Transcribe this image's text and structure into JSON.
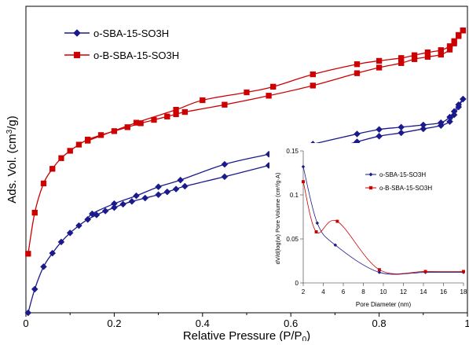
{
  "chart_data": [
    {
      "type": "scatter",
      "title": "",
      "xlabel": "Relative Pressure (P/P",
      "xlabel_sub": "0",
      "xlabel_end": ")",
      "ylabel": "Ads. Vol. (cm",
      "ylabel_sup": "3",
      "ylabel_end": "/g)",
      "xlim": [
        0,
        1
      ],
      "x_ticks": [
        0,
        0.2,
        0.4,
        0.6,
        0.8,
        1
      ],
      "x_tick_labels": [
        "0",
        "0.2",
        "0.4",
        "0.6",
        "0.8",
        "1"
      ],
      "y_ticks_visible": false,
      "grid": false,
      "legend_position": "top-left",
      "series": [
        {
          "name": "o-SBA-15-SO3H",
          "color": "#1a1a8c",
          "marker": "diamond",
          "adsorption": {
            "x": [
              0.005,
              0.02,
              0.04,
              0.06,
              0.08,
              0.1,
              0.12,
              0.14,
              0.16,
              0.18,
              0.2,
              0.22,
              0.24,
              0.27,
              0.3,
              0.32,
              0.34,
              0.36,
              0.45,
              0.55,
              0.65,
              0.75,
              0.8,
              0.85,
              0.9,
              0.94,
              0.96,
              0.97,
              0.98,
              0.99
            ],
            "y": [
              0.0,
              0.42,
              0.82,
              1.06,
              1.26,
              1.42,
              1.55,
              1.66,
              1.74,
              1.81,
              1.87,
              1.93,
              1.98,
              2.04,
              2.1,
              2.15,
              2.2,
              2.25,
              2.42,
              2.62,
              2.82,
              3.04,
              3.14,
              3.2,
              3.27,
              3.33,
              3.4,
              3.52,
              3.66,
              3.8
            ]
          },
          "desorption": {
            "x": [
              0.99,
              0.98,
              0.97,
              0.96,
              0.94,
              0.9,
              0.85,
              0.8,
              0.75,
              0.65,
              0.55,
              0.45,
              0.35,
              0.3,
              0.25,
              0.2,
              0.15,
              0.14
            ],
            "y": [
              3.8,
              3.7,
              3.58,
              3.48,
              3.38,
              3.34,
              3.3,
              3.26,
              3.18,
              3.0,
              2.82,
              2.64,
              2.36,
              2.24,
              2.08,
              1.94,
              1.76,
              1.66
            ]
          }
        },
        {
          "name": "o-B-SBA-15-SO3H",
          "color": "#cc0000",
          "marker": "square",
          "adsorption": {
            "x": [
              0.005,
              0.02,
              0.04,
              0.06,
              0.08,
              0.1,
              0.12,
              0.14,
              0.17,
              0.2,
              0.23,
              0.26,
              0.29,
              0.32,
              0.34,
              0.36,
              0.45,
              0.55,
              0.65,
              0.75,
              0.8,
              0.85,
              0.88,
              0.91,
              0.94,
              0.96,
              0.97,
              0.98,
              0.99
            ],
            "y": [
              1.05,
              1.78,
              2.3,
              2.56,
              2.75,
              2.88,
              2.99,
              3.08,
              3.16,
              3.23,
              3.3,
              3.37,
              3.43,
              3.49,
              3.53,
              3.57,
              3.7,
              3.86,
              4.04,
              4.26,
              4.36,
              4.44,
              4.51,
              4.55,
              4.59,
              4.68,
              4.79,
              4.92,
              5.02
            ]
          },
          "desorption": {
            "x": [
              0.99,
              0.98,
              0.97,
              0.96,
              0.94,
              0.91,
              0.88,
              0.85,
              0.8,
              0.75,
              0.65,
              0.56,
              0.5,
              0.4,
              0.34,
              0.25,
              0.14
            ],
            "y": [
              5.02,
              4.94,
              4.83,
              4.74,
              4.67,
              4.63,
              4.58,
              4.53,
              4.48,
              4.42,
              4.24,
              4.02,
              3.92,
              3.78,
              3.61,
              3.38,
              3.06
            ]
          }
        }
      ]
    },
    {
      "type": "line",
      "title": "",
      "xlabel": "Pore Diameter (nm)",
      "ylabel": "dV/d(log(w) Pore Volume (cm³/g·A)",
      "xlim": [
        2,
        18
      ],
      "ylim": [
        0,
        0.15
      ],
      "x_ticks": [
        2,
        4,
        6,
        8,
        10,
        12,
        14,
        16,
        18
      ],
      "x_tick_labels": [
        "2",
        "4",
        "6",
        "8",
        "10",
        "12",
        "14",
        "16",
        "18"
      ],
      "y_ticks": [
        0,
        0.05,
        0.1,
        0.15
      ],
      "y_tick_labels": [
        "0",
        "0.05",
        "0.1",
        "0.15"
      ],
      "legend_position": "top-right",
      "series": [
        {
          "name": "o-SBA-15-SO3H",
          "color": "#1a1a8c",
          "marker": "diamond",
          "x": [
            2.0,
            3.4,
            5.2,
            9.6,
            14.2,
            18.0
          ],
          "y": [
            0.132,
            0.068,
            0.043,
            0.012,
            0.012,
            0.012
          ]
        },
        {
          "name": "o-B-SBA-15-SO3H",
          "color": "#cc0000",
          "marker": "square",
          "x": [
            2.0,
            3.3,
            5.4,
            9.6,
            14.2,
            18.0
          ],
          "y": [
            0.115,
            0.058,
            0.07,
            0.015,
            0.013,
            0.013
          ]
        }
      ]
    }
  ]
}
